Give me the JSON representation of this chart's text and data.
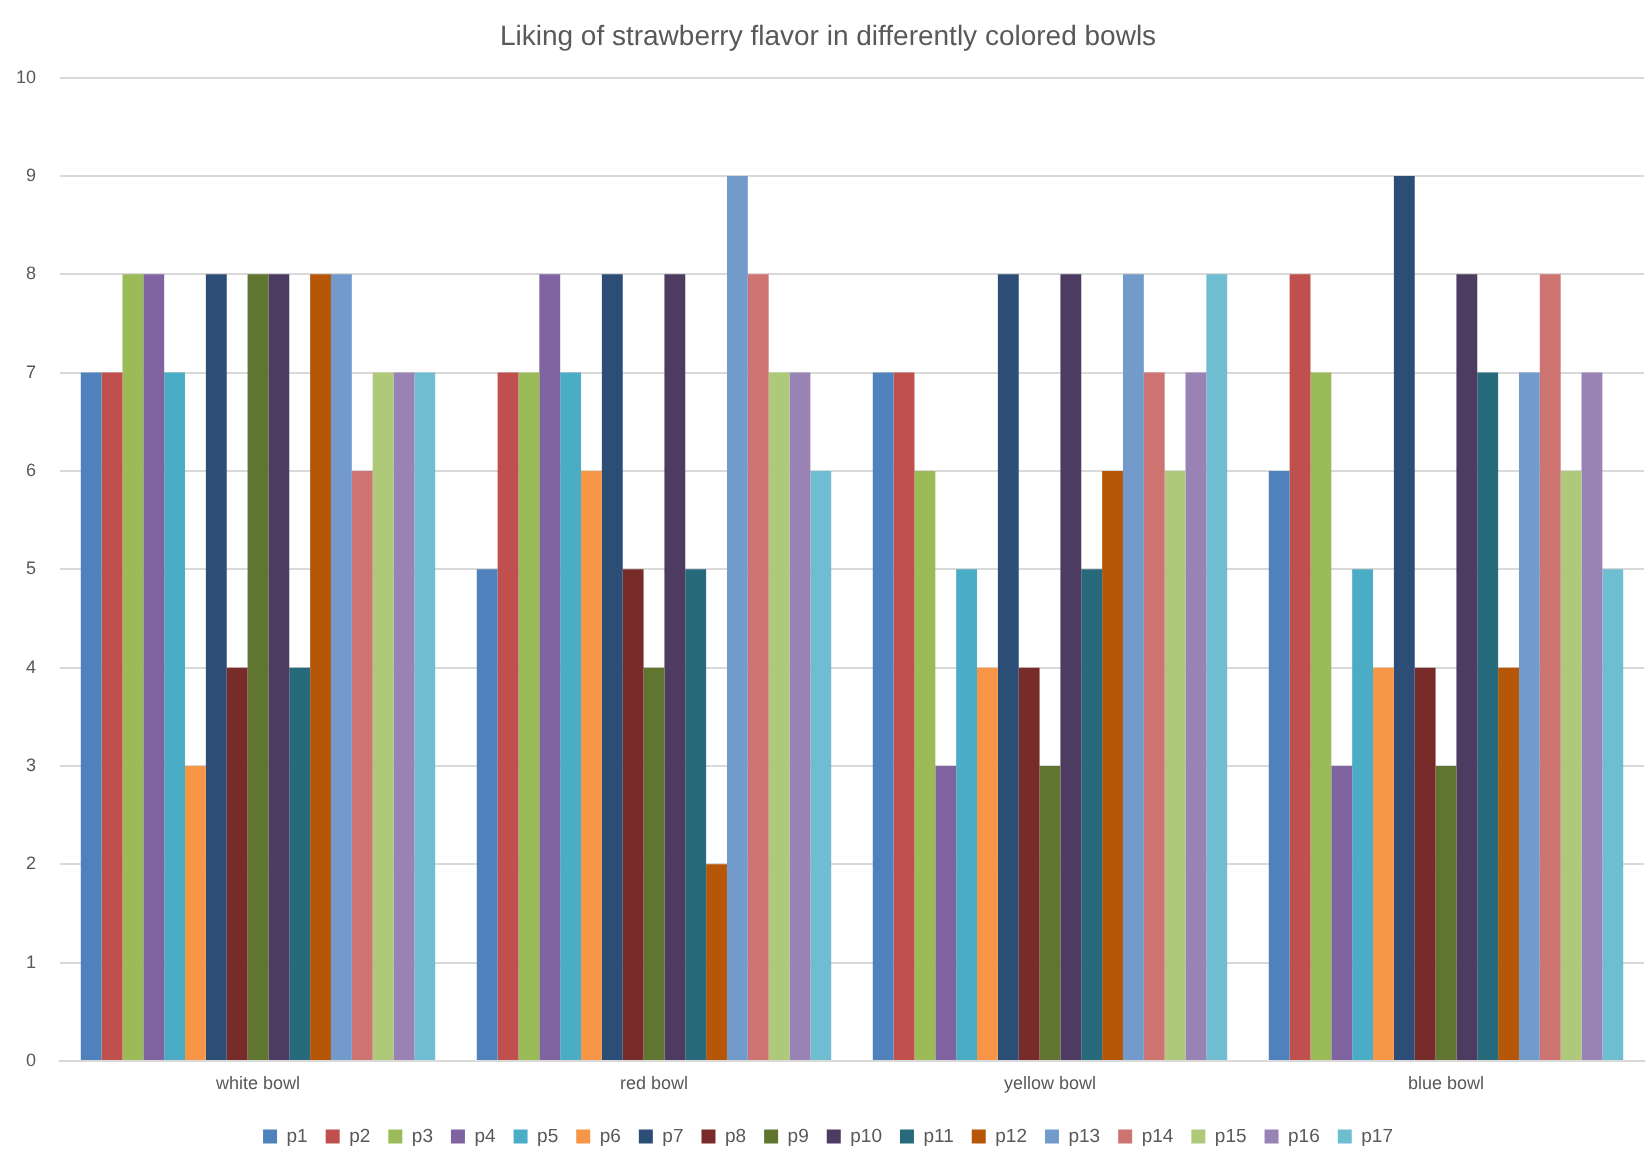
{
  "chart_data": {
    "type": "bar",
    "title": "Liking of strawberry flavor in differently colored bowls",
    "categories": [
      "white bowl",
      "red bowl",
      "yellow bowl",
      "blue bowl"
    ],
    "series": [
      {
        "name": "p1",
        "color": "#4f81bd",
        "values": [
          7,
          5,
          7,
          6
        ]
      },
      {
        "name": "p2",
        "color": "#c0504d",
        "values": [
          7,
          7,
          7,
          8
        ]
      },
      {
        "name": "p3",
        "color": "#9bbb59",
        "values": [
          8,
          7,
          6,
          7
        ]
      },
      {
        "name": "p4",
        "color": "#8064a2",
        "values": [
          8,
          8,
          3,
          3
        ]
      },
      {
        "name": "p5",
        "color": "#4bacc6",
        "values": [
          7,
          7,
          5,
          5
        ]
      },
      {
        "name": "p6",
        "color": "#f79646",
        "values": [
          3,
          6,
          4,
          4
        ]
      },
      {
        "name": "p7",
        "color": "#2c4d75",
        "values": [
          8,
          8,
          8,
          9
        ]
      },
      {
        "name": "p8",
        "color": "#772c2a",
        "values": [
          4,
          5,
          4,
          4
        ]
      },
      {
        "name": "p9",
        "color": "#5f7530",
        "values": [
          8,
          4,
          3,
          3
        ]
      },
      {
        "name": "p10",
        "color": "#4d3b62",
        "values": [
          8,
          8,
          8,
          8
        ]
      },
      {
        "name": "p11",
        "color": "#276a7c",
        "values": [
          4,
          5,
          5,
          7
        ]
      },
      {
        "name": "p12",
        "color": "#b65708",
        "values": [
          8,
          2,
          6,
          4
        ]
      },
      {
        "name": "p13",
        "color": "#729aca",
        "values": [
          8,
          9,
          8,
          7
        ]
      },
      {
        "name": "p14",
        "color": "#cd7371",
        "values": [
          6,
          8,
          7,
          8
        ]
      },
      {
        "name": "p15",
        "color": "#afc97a",
        "values": [
          7,
          7,
          6,
          6
        ]
      },
      {
        "name": "p16",
        "color": "#9983b5",
        "values": [
          7,
          7,
          7,
          7
        ]
      },
      {
        "name": "p17",
        "color": "#6fbdd1",
        "values": [
          7,
          6,
          8,
          5
        ]
      }
    ],
    "ylim": [
      0,
      10
    ],
    "yticks": [
      0,
      1,
      2,
      3,
      4,
      5,
      6,
      7,
      8,
      9,
      10
    ],
    "grid": "y",
    "legend": "bottom"
  }
}
